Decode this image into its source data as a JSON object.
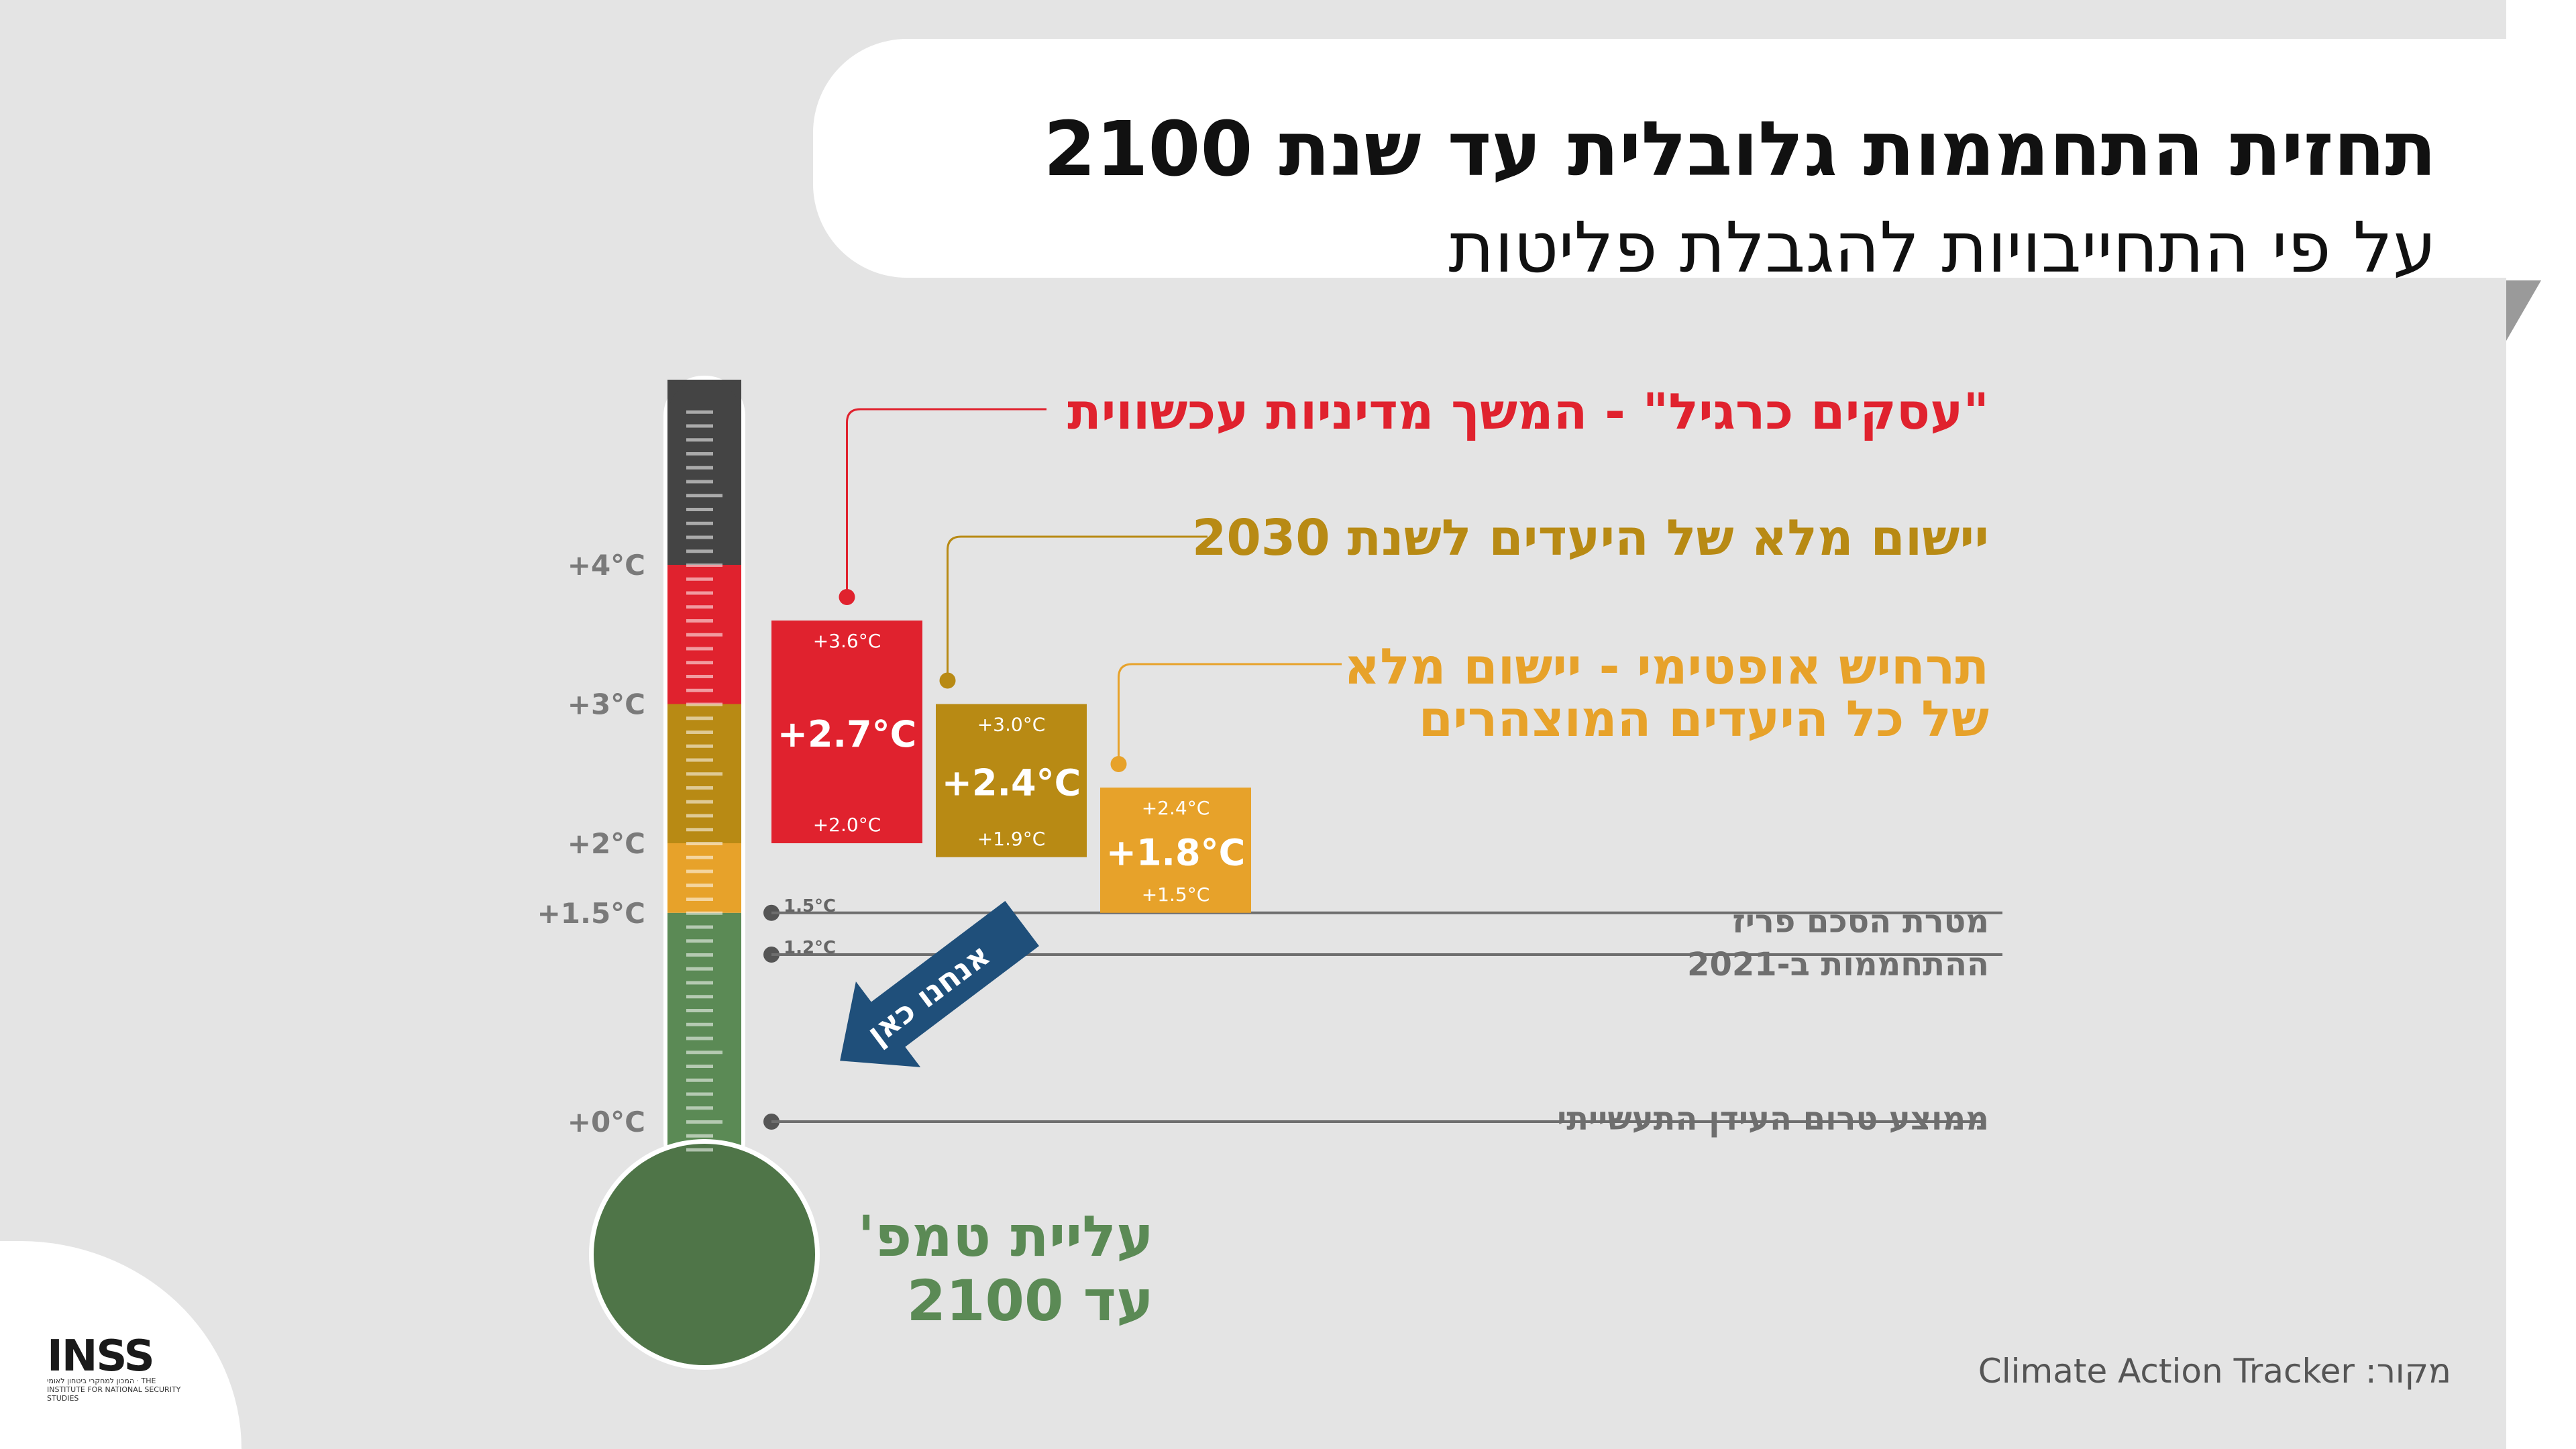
{
  "header": {
    "title": "תחזית התחממות גלובלית עד שנת 2100",
    "subtitle": "על פי התחייבויות להגבלת פליטות"
  },
  "y_axis_label_line1": "עליית טמפ'",
  "y_axis_label_line2": "עד 2100",
  "source": "מקור: Climate Action Tracker",
  "logo": {
    "name": "INSS",
    "subtitle": "המכון למחקרי ביטחון לאומי · THE INSTITUTE FOR NATIONAL SECURITY STUDIES"
  },
  "here_arrow_label": "אנחנו כאן",
  "colors": {
    "dark": "#444444",
    "red": "#e0222e",
    "mustard": "#b88a14",
    "orange": "#e7a22a",
    "green": "#5b8a55",
    "bulb": "#4f7548"
  },
  "chart_data": {
    "type": "bar",
    "ylim": [
      0,
      4.5
    ],
    "ticks": [
      {
        "value": 4,
        "label": "+4°C"
      },
      {
        "value": 3,
        "label": "+3°C"
      },
      {
        "value": 2,
        "label": "+2°C"
      },
      {
        "value": 1.5,
        "label": "+1.5°C"
      },
      {
        "value": 0,
        "label": "+0°C"
      }
    ],
    "thermometer_bands": [
      {
        "from": 0,
        "to": 1.5,
        "color": "#5b8a55"
      },
      {
        "from": 1.5,
        "to": 2,
        "color": "#e7a22a"
      },
      {
        "from": 2,
        "to": 3,
        "color": "#b88a14"
      },
      {
        "from": 3,
        "to": 4,
        "color": "#e0222e"
      },
      {
        "from": 4,
        "to": 5.4,
        "color": "#444444"
      }
    ],
    "series": [
      {
        "name": "\"עסקים כרגיל\" - המשך מדיניות עכשווית",
        "central": 2.7,
        "central_label": "+2.7°C",
        "low": 2.0,
        "low_label": "+2.0°C",
        "high": 3.6,
        "high_label": "+3.6°C",
        "color": "#e0222e"
      },
      {
        "name": "יישום מלא של היעדים לשנת 2030",
        "central": 2.4,
        "central_label": "+2.4°C",
        "low": 1.9,
        "low_label": "+1.9°C",
        "high": 3.0,
        "high_label": "+3.0°C",
        "color": "#b88a14"
      },
      {
        "name": "תרחיש אופטימי - יישום מלא של כל היעדים המוצהרים",
        "name_line1": "תרחיש אופטימי - יישום מלא",
        "name_line2": "של כל היעדים המוצהרים",
        "central": 1.8,
        "central_label": "+1.8°C",
        "low": 1.5,
        "low_label": "+1.5°C",
        "high": 2.4,
        "high_label": "+2.4°C",
        "color": "#e7a22a"
      }
    ],
    "reference_lines": [
      {
        "value": 1.5,
        "value_label": "1.5°C",
        "label": "מטרת הסכם פריז"
      },
      {
        "value": 1.2,
        "value_label": "1.2°C",
        "label": "ההתחממות ב-2021"
      },
      {
        "value": 0,
        "value_label": "",
        "label": "ממוצע טרום העידן התעשייתי"
      }
    ]
  }
}
